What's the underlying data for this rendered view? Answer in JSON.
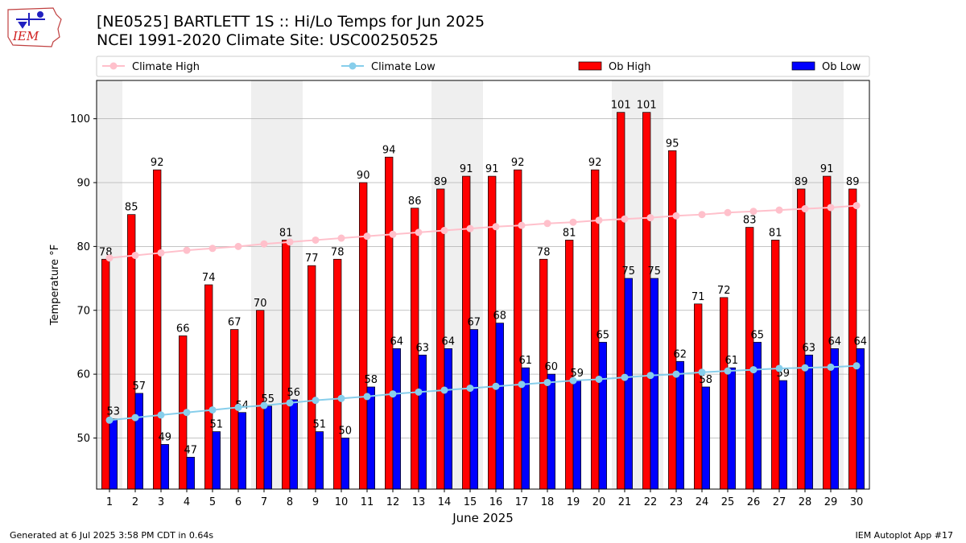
{
  "title_line1": "[NE0525] BARTLETT 1S :: Hi/Lo Temps for Jun 2025",
  "title_line2": "NCEI 1991-2020 Climate Site: USC00250525",
  "logo_text": "IEM",
  "footer_left": "Generated at 6 Jul 2025 3:58 PM CDT in 0.64s",
  "footer_right": "IEM Autoplot App #17",
  "colors": {
    "ob_high": "#ff0000",
    "ob_low": "#0000ff",
    "climate_high": "#ffc0cb",
    "climate_low": "#87ceeb",
    "weekend_shade": "#efefef",
    "grid": "#b0b0b0"
  },
  "chart_data": {
    "type": "bar",
    "xlabel": "June 2025",
    "ylabel": "Temperature °F",
    "ylim": [
      42,
      106
    ],
    "yticks": [
      50,
      60,
      70,
      80,
      90,
      100
    ],
    "grid": "horizontal",
    "legend_position": "top",
    "categories": [
      "1",
      "2",
      "3",
      "4",
      "5",
      "6",
      "7",
      "8",
      "9",
      "10",
      "11",
      "12",
      "13",
      "14",
      "15",
      "16",
      "17",
      "18",
      "19",
      "20",
      "21",
      "22",
      "23",
      "24",
      "25",
      "26",
      "27",
      "28",
      "29",
      "30"
    ],
    "shaded_days": [
      1,
      7,
      8,
      14,
      15,
      21,
      22,
      28,
      29
    ],
    "series": [
      {
        "name": "Climate High",
        "kind": "line",
        "values": [
          78.2,
          78.6,
          79.0,
          79.4,
          79.7,
          80.0,
          80.4,
          80.7,
          81.0,
          81.3,
          81.6,
          81.9,
          82.2,
          82.5,
          82.8,
          83.1,
          83.3,
          83.6,
          83.8,
          84.1,
          84.3,
          84.5,
          84.8,
          85.0,
          85.3,
          85.5,
          85.7,
          85.9,
          86.1,
          86.4
        ]
      },
      {
        "name": "Climate Low",
        "kind": "line",
        "values": [
          52.8,
          53.2,
          53.6,
          54.0,
          54.4,
          54.8,
          55.1,
          55.5,
          55.9,
          56.2,
          56.5,
          56.9,
          57.2,
          57.5,
          57.8,
          58.1,
          58.4,
          58.7,
          59.0,
          59.2,
          59.5,
          59.8,
          60.0,
          60.3,
          60.5,
          60.7,
          60.9,
          61.0,
          61.1,
          61.3
        ]
      },
      {
        "name": "Ob High",
        "kind": "bar",
        "values": [
          78,
          85,
          92,
          66,
          74,
          67,
          70,
          81,
          77,
          78,
          90,
          94,
          86,
          89,
          91,
          91,
          92,
          78,
          81,
          92,
          101,
          101,
          95,
          71,
          72,
          83,
          81,
          89,
          91,
          89
        ]
      },
      {
        "name": "Ob Low",
        "kind": "bar",
        "values": [
          53,
          57,
          49,
          47,
          51,
          54,
          55,
          56,
          51,
          50,
          58,
          64,
          63,
          64,
          67,
          68,
          61,
          60,
          59,
          65,
          75,
          75,
          62,
          58,
          61,
          65,
          59,
          63,
          64,
          64
        ]
      }
    ]
  }
}
